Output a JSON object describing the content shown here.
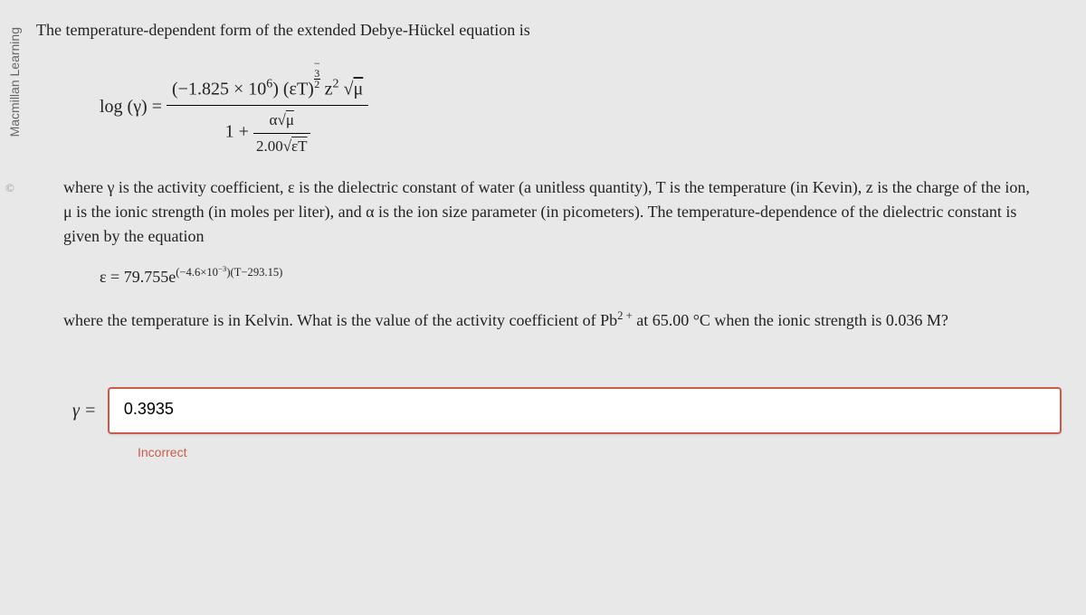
{
  "sidebar": {
    "publisher": "Macmillan Learning",
    "copyright_symbol": "©"
  },
  "content": {
    "intro": "The temperature-dependent form of the extended Debye-Hückel equation is",
    "equation": {
      "lhs": "log (γ) =",
      "num_coeff": "(−1.825 × 10",
      "num_coeff_exp": "6",
      "num_mid": ") (εT)",
      "num_exp_neg": "−",
      "num_exp_frac_n": "3",
      "num_exp_frac_d": "2",
      "num_z": " z",
      "num_z_exp": "2",
      "num_sqrt": "μ",
      "den_one": "1 +",
      "den_frac_num_a": "α",
      "den_frac_num_sqrt": "μ",
      "den_frac_den_coeff": "2.00",
      "den_frac_den_sqrt": "εT"
    },
    "para1": "where γ is the activity coefficient, ε is the dielectric constant of water (a unitless quantity), T is the temperature (in Kevin), z is the charge of the ion, μ is the ionic strength (in moles per liter), and α is the ion size parameter (in picometers). The temperature-dependence of the dielectric constant is given by the equation",
    "eps_eq": {
      "lhs": "ε = 79.755e",
      "exp": "(−4.6×10",
      "exp_exp": "−3",
      "exp_tail": ")(T−293.15)"
    },
    "para2_a": "where the temperature is in Kelvin. What is the value of the activity coefficient of Pb",
    "para2_sup": "2 +",
    "para2_b": "at 65.00 °C when the ionic strength is 0.036 M?"
  },
  "answer": {
    "label": "γ =",
    "value": "0.3935",
    "feedback": "Incorrect"
  },
  "style": {
    "bg_color": "#e8e8e8",
    "error_color": "#c95b4a",
    "text_color": "#222222",
    "input_bg": "#ffffff",
    "body_fontsize": 18,
    "answer_box_width": 1050,
    "answer_box_height": 48
  }
}
